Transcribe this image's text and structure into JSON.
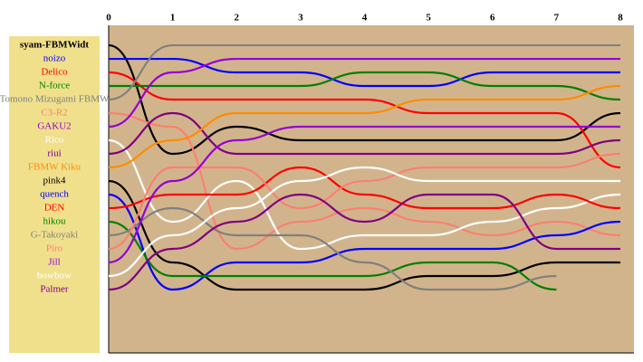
{
  "chart_data": {
    "type": "line",
    "x": [
      0,
      1,
      2,
      3,
      4,
      5,
      6,
      7,
      8
    ],
    "xlim": [
      0,
      8
    ],
    "xticks": [
      0,
      1,
      2,
      3,
      4,
      5,
      6,
      7,
      8
    ],
    "ylim": [
      -0.47,
      23.67
    ],
    "y_inverted": true,
    "series": [
      {
        "name": "syam-FBMWidt",
        "color": "#000000",
        "values": [
          1,
          9,
          7,
          8,
          8,
          8,
          8,
          8,
          6
        ]
      },
      {
        "name": "noizo",
        "color": "#0000ff",
        "values": [
          2,
          2,
          3,
          3,
          4,
          4,
          3,
          3,
          3
        ]
      },
      {
        "name": "Delico",
        "color": "#ff0000",
        "values": [
          3,
          5,
          5,
          5,
          5,
          6,
          6,
          6,
          10
        ]
      },
      {
        "name": "N-force",
        "color": "#008000",
        "values": [
          4,
          4,
          4,
          4,
          3,
          3,
          4,
          4,
          5
        ]
      },
      {
        "name": "Tomono Mizugami FBMW",
        "color": "#808080",
        "values": [
          5,
          1,
          1,
          1,
          1,
          1,
          1,
          1,
          1
        ]
      },
      {
        "name": "C3-R2",
        "color": "#fa8072",
        "values": [
          6,
          7,
          16,
          14,
          13,
          14,
          15,
          14,
          15
        ]
      },
      {
        "name": "GAKU2",
        "color": "#9400d3",
        "values": [
          7,
          3,
          2,
          2,
          2,
          2,
          2,
          2,
          2
        ]
      },
      {
        "name": "Rico",
        "color": "#ffffff",
        "values": [
          8,
          14,
          11,
          16,
          15,
          15,
          14,
          13,
          12
        ]
      },
      {
        "name": "riui",
        "color": "#800080",
        "values": [
          9,
          6,
          9,
          9,
          9,
          9,
          9,
          9,
          8
        ]
      },
      {
        "name": "FBMW Kiku",
        "color": "#ff8c00",
        "values": [
          10,
          8,
          6,
          6,
          6,
          5,
          5,
          5,
          4
        ]
      },
      {
        "name": "pink4",
        "color": "#000000",
        "values": [
          11,
          17,
          19,
          19,
          19,
          18,
          18,
          17,
          17
        ]
      },
      {
        "name": "quench",
        "color": "#0000ff",
        "values": [
          12,
          19,
          17,
          17,
          16,
          16,
          16,
          15,
          14
        ]
      },
      {
        "name": "DEN",
        "color": "#ff0000",
        "values": [
          13,
          12,
          12,
          10,
          12,
          13,
          13,
          12,
          13
        ]
      },
      {
        "name": "hikou",
        "color": "#008000",
        "values": [
          14,
          18,
          18,
          18,
          18,
          17,
          17,
          19,
          null
        ]
      },
      {
        "name": "G-Takoyaki",
        "color": "#808080",
        "values": [
          15,
          13,
          15,
          15,
          17,
          19,
          19,
          18,
          null
        ]
      },
      {
        "name": "Piro",
        "color": "#fa8072",
        "values": [
          16,
          10,
          10,
          13,
          11,
          10,
          10,
          10,
          9
        ]
      },
      {
        "name": "Jill",
        "color": "#9400d3",
        "values": [
          17,
          11,
          8,
          7,
          7,
          7,
          7,
          7,
          7
        ]
      },
      {
        "name": "bowbow",
        "color": "#ffffff",
        "values": [
          18,
          15,
          13,
          11,
          10,
          11,
          11,
          11,
          11
        ]
      },
      {
        "name": "Palmer",
        "color": "#800080",
        "values": [
          19,
          16,
          14,
          12,
          14,
          12,
          12,
          16,
          16
        ]
      }
    ]
  }
}
